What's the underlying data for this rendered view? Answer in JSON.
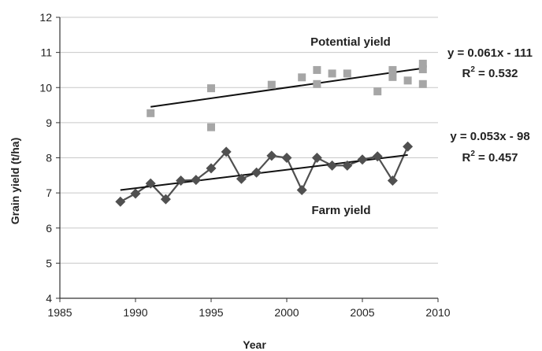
{
  "chart_data": {
    "type": "scatter",
    "title": "",
    "xlabel": "Year",
    "ylabel": "Grain yield (t/ha)",
    "xlim": [
      1985,
      2010
    ],
    "ylim": [
      4,
      12
    ],
    "xticks": [
      1985,
      1990,
      1995,
      2000,
      2005,
      2010
    ],
    "yticks": [
      4,
      5,
      6,
      7,
      8,
      9,
      10,
      11,
      12
    ],
    "grid": "horizontal",
    "series": [
      {
        "name": "Potential yield",
        "marker": "square",
        "line": false,
        "color": "#a6a6a6",
        "x": [
          1991,
          1995,
          1995,
          1999,
          2001,
          2002,
          2002,
          2003,
          2004,
          2006,
          2007,
          2007,
          2008,
          2009,
          2009,
          2009
        ],
        "y": [
          9.27,
          9.98,
          8.87,
          10.08,
          10.29,
          10.5,
          10.1,
          10.4,
          10.4,
          9.89,
          10.5,
          10.3,
          10.2,
          10.68,
          10.52,
          10.1
        ],
        "trend": {
          "x": [
            1991,
            2009
          ],
          "y": [
            9.45,
            10.55
          ],
          "equation": "y = 0.061x - 111",
          "r2_label": "R",
          "r2_exp": "2",
          "r2_value": " = 0.532"
        }
      },
      {
        "name": "Farm yield",
        "marker": "diamond",
        "line": true,
        "color": "#505050",
        "x": [
          1989,
          1990,
          1991,
          1992,
          1993,
          1994,
          1995,
          1996,
          1997,
          1998,
          1999,
          2000,
          2001,
          2002,
          2003,
          2004,
          2005,
          2006,
          2007,
          2008
        ],
        "y": [
          6.75,
          6.98,
          7.27,
          6.82,
          7.35,
          7.37,
          7.7,
          8.17,
          7.4,
          7.58,
          8.06,
          8.0,
          7.08,
          8.0,
          7.78,
          7.78,
          7.95,
          8.04,
          7.35,
          8.32
        ],
        "trend": {
          "x": [
            1989,
            2008
          ],
          "y": [
            7.08,
            8.08
          ],
          "equation": "y = 0.053x - 98",
          "r2_label": "R",
          "r2_exp": "2",
          "r2_value": " = 0.457"
        }
      }
    ]
  }
}
